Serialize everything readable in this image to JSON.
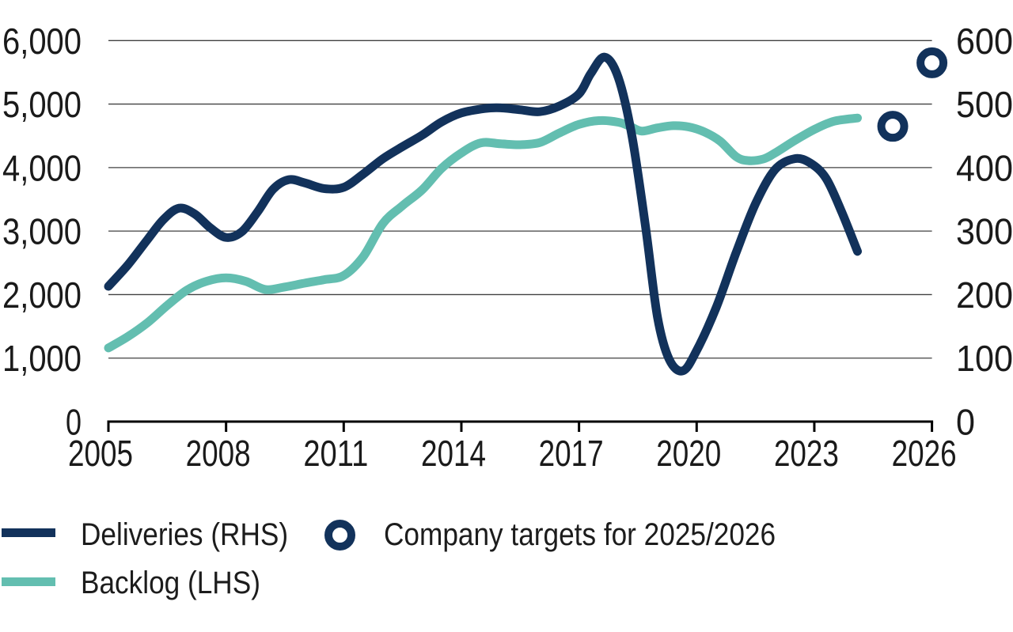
{
  "colors": {
    "deliveries": "#12325B",
    "backlog": "#63BEB0",
    "gridline": "#404040",
    "axis_line": "#000000",
    "text": "#1a1a1a",
    "background": "#ffffff"
  },
  "legend": {
    "items": [
      {
        "label": "Deliveries (RHS)",
        "swatch": "line",
        "color": "#12325B"
      },
      {
        "label": "Backlog (LHS)",
        "swatch": "line",
        "color": "#63BEB0"
      },
      {
        "label": "Company targets for 2025/2026",
        "swatch": "ring",
        "color": "#12325B"
      }
    ]
  },
  "chart_data": {
    "type": "line",
    "title": "",
    "grid": true,
    "x_axis": {
      "range": [
        2005,
        2026
      ],
      "ticks": [
        {
          "value": 2005,
          "label": "2005"
        },
        {
          "value": 2008,
          "label": "2008"
        },
        {
          "value": 2011,
          "label": "2011"
        },
        {
          "value": 2014,
          "label": "2014"
        },
        {
          "value": 2017,
          "label": "2017"
        },
        {
          "value": 2020,
          "label": "2020"
        },
        {
          "value": 2023,
          "label": "2023"
        },
        {
          "value": 2026,
          "label": "2026"
        }
      ]
    },
    "left_axis": {
      "name": "Backlog (LHS)",
      "range": [
        0,
        6000
      ],
      "ticks": [
        {
          "value": 0,
          "label": "0"
        },
        {
          "value": 1000,
          "label": "1,000"
        },
        {
          "value": 2000,
          "label": "2,000"
        },
        {
          "value": 3000,
          "label": "3,000"
        },
        {
          "value": 4000,
          "label": "4,000"
        },
        {
          "value": 5000,
          "label": "5,000"
        },
        {
          "value": 6000,
          "label": "6,000"
        }
      ]
    },
    "right_axis": {
      "name": "Deliveries (RHS)",
      "range": [
        0,
        600
      ],
      "ticks": [
        {
          "value": 0,
          "label": "0"
        },
        {
          "value": 100,
          "label": "100"
        },
        {
          "value": 200,
          "label": "200"
        },
        {
          "value": 300,
          "label": "300"
        },
        {
          "value": 400,
          "label": "400"
        },
        {
          "value": 500,
          "label": "500"
        },
        {
          "value": 600,
          "label": "600"
        }
      ]
    },
    "series": [
      {
        "name": "Deliveries (RHS)",
        "axis": "right",
        "color": "#12325B",
        "points": [
          [
            2005,
            213
          ],
          [
            2005.5,
            247
          ],
          [
            2006,
            287
          ],
          [
            2006.4,
            318
          ],
          [
            2006.8,
            336
          ],
          [
            2007.2,
            327
          ],
          [
            2007.6,
            305
          ],
          [
            2008,
            290
          ],
          [
            2008.4,
            299
          ],
          [
            2008.8,
            330
          ],
          [
            2009.2,
            366
          ],
          [
            2009.6,
            381
          ],
          [
            2010,
            376
          ],
          [
            2010.5,
            367
          ],
          [
            2011,
            369
          ],
          [
            2011.5,
            390
          ],
          [
            2012,
            414
          ],
          [
            2012.5,
            433
          ],
          [
            2013,
            451
          ],
          [
            2013.5,
            472
          ],
          [
            2014,
            486
          ],
          [
            2014.6,
            493
          ],
          [
            2015,
            494
          ],
          [
            2015.5,
            491
          ],
          [
            2016,
            488
          ],
          [
            2016.5,
            497
          ],
          [
            2017,
            516
          ],
          [
            2017.3,
            548
          ],
          [
            2017.65,
            574
          ],
          [
            2018,
            542
          ],
          [
            2018.35,
            450
          ],
          [
            2018.7,
            305
          ],
          [
            2019,
            165
          ],
          [
            2019.3,
            98
          ],
          [
            2019.65,
            80
          ],
          [
            2020,
            112
          ],
          [
            2020.5,
            180
          ],
          [
            2021,
            265
          ],
          [
            2021.5,
            343
          ],
          [
            2022,
            397
          ],
          [
            2022.5,
            414
          ],
          [
            2022.9,
            407
          ],
          [
            2023.3,
            383
          ],
          [
            2023.7,
            330
          ],
          [
            2024.1,
            268
          ]
        ]
      },
      {
        "name": "Backlog (LHS)",
        "axis": "left",
        "color": "#63BEB0",
        "points": [
          [
            2005,
            1160
          ],
          [
            2005.5,
            1340
          ],
          [
            2006,
            1560
          ],
          [
            2006.5,
            1830
          ],
          [
            2007,
            2070
          ],
          [
            2007.5,
            2210
          ],
          [
            2008,
            2265
          ],
          [
            2008.5,
            2210
          ],
          [
            2009,
            2080
          ],
          [
            2009.5,
            2120
          ],
          [
            2010,
            2180
          ],
          [
            2010.5,
            2235
          ],
          [
            2011,
            2300
          ],
          [
            2011.5,
            2600
          ],
          [
            2012,
            3120
          ],
          [
            2012.5,
            3400
          ],
          [
            2013,
            3650
          ],
          [
            2013.5,
            3990
          ],
          [
            2014,
            4230
          ],
          [
            2014.5,
            4390
          ],
          [
            2015,
            4375
          ],
          [
            2015.5,
            4360
          ],
          [
            2016,
            4395
          ],
          [
            2016.5,
            4545
          ],
          [
            2017,
            4680
          ],
          [
            2017.5,
            4740
          ],
          [
            2018,
            4715
          ],
          [
            2018.3,
            4650
          ],
          [
            2018.6,
            4575
          ],
          [
            2019,
            4625
          ],
          [
            2019.4,
            4660
          ],
          [
            2019.8,
            4640
          ],
          [
            2020.2,
            4560
          ],
          [
            2020.6,
            4415
          ],
          [
            2021,
            4175
          ],
          [
            2021.3,
            4110
          ],
          [
            2021.7,
            4135
          ],
          [
            2022,
            4230
          ],
          [
            2022.5,
            4425
          ],
          [
            2023,
            4600
          ],
          [
            2023.5,
            4730
          ],
          [
            2024.1,
            4780
          ]
        ]
      }
    ],
    "targets": {
      "name": "Company targets for 2025/2026",
      "axis": "right",
      "color": "#12325B",
      "marker": "ring",
      "points": [
        [
          2025,
          465
        ],
        [
          2026,
          565
        ]
      ]
    },
    "legend_position": "bottom-left"
  }
}
